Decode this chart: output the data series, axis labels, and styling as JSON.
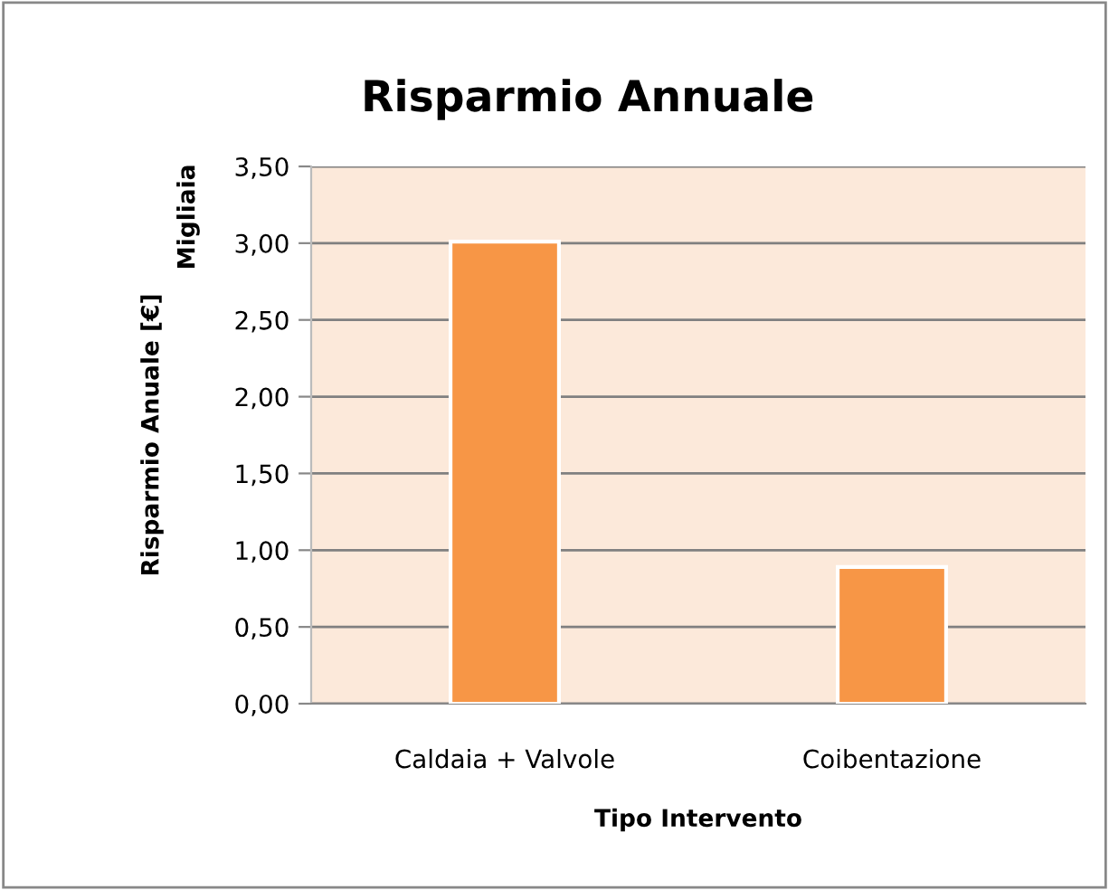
{
  "chart_data": {
    "type": "bar",
    "title": "Risparmio Annuale",
    "xlabel": "Tipo Intervento",
    "ylabel": "Risparmio Anuale [€]",
    "annotations": [
      "Migliaia"
    ],
    "categories": [
      "Caldaia + Valvole",
      "Coibentazione"
    ],
    "values": [
      3.01,
      0.89
    ],
    "color": "#f79646",
    "ylim": [
      0,
      3.5
    ],
    "yticks": [
      {
        "value": 0,
        "label": "0,00"
      },
      {
        "value": 0.5,
        "label": "0,50"
      },
      {
        "value": 1,
        "label": "1,00"
      },
      {
        "value": 1.5,
        "label": "1,50"
      },
      {
        "value": 2,
        "label": "2,00"
      },
      {
        "value": 2.5,
        "label": "2,50"
      },
      {
        "value": 3,
        "label": "3,00"
      },
      {
        "value": 3.5,
        "label": "3,50"
      }
    ],
    "grid": "y",
    "legend": false
  }
}
